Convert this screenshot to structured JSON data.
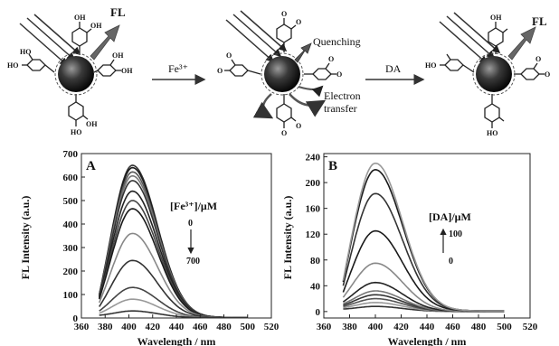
{
  "schematic": {
    "fl_label_left": "FL",
    "arrow1_label": "Fe³⁺",
    "quenching_label": "Quenching",
    "electron_label_line1": "Electron",
    "electron_label_line2": "transfer",
    "arrow2_label": "DA",
    "fl_label_right": "FL",
    "oh_label": "OH",
    "ho_label": "HO",
    "o_label": "O"
  },
  "chart_data": [
    {
      "type": "line",
      "panel_label": "A",
      "xlabel": "Wavelength / nm",
      "ylabel": "FL Intensity (a.u.)",
      "xlim": [
        360,
        520
      ],
      "ylim": [
        0,
        700
      ],
      "xticks": [
        360,
        380,
        400,
        420,
        440,
        460,
        480,
        500,
        520
      ],
      "yticks": [
        0,
        100,
        200,
        300,
        400,
        500,
        600,
        700
      ],
      "x_range": [
        375,
        500
      ],
      "peak_x": 403,
      "legend_title": "[Fe³⁺]/μM",
      "legend_start": "0",
      "legend_end": "700",
      "grid": false,
      "series": [
        {
          "peak": 650,
          "start": 100,
          "end": 2,
          "color": "#333333"
        },
        {
          "peak": 640,
          "start": 98,
          "end": 2,
          "color": "#1a1a1a"
        },
        {
          "peak": 622,
          "start": 96,
          "end": 2,
          "color": "#555555"
        },
        {
          "peak": 605,
          "start": 94,
          "end": 2,
          "color": "#777777"
        },
        {
          "peak": 585,
          "start": 92,
          "end": 2,
          "color": "#333333"
        },
        {
          "peak": 540,
          "start": 88,
          "end": 2,
          "color": "#222222"
        },
        {
          "peak": 500,
          "start": 84,
          "end": 2,
          "color": "#444444"
        },
        {
          "peak": 465,
          "start": 80,
          "end": 2,
          "color": "#1a1a1a"
        },
        {
          "peak": 360,
          "start": 65,
          "end": 2,
          "color": "#888888"
        },
        {
          "peak": 245,
          "start": 48,
          "end": 2,
          "color": "#333333"
        },
        {
          "peak": 130,
          "start": 30,
          "end": 1,
          "color": "#444444"
        },
        {
          "peak": 80,
          "start": 20,
          "end": 1,
          "color": "#999999"
        },
        {
          "peak": 30,
          "start": 12,
          "end": 1,
          "color": "#333333"
        }
      ]
    },
    {
      "type": "line",
      "panel_label": "B",
      "xlabel": "Wavelength / nm",
      "ylabel": "FL Intensity (a.u.)",
      "xlim": [
        360,
        520
      ],
      "ylim": [
        -10,
        245
      ],
      "xticks": [
        360,
        380,
        400,
        420,
        440,
        460,
        480,
        500,
        520
      ],
      "yticks": [
        0,
        40,
        80,
        120,
        160,
        200,
        240
      ],
      "x_range": [
        375,
        500
      ],
      "peak_x": 400,
      "legend_title": "[DA]/μM",
      "legend_start": "0",
      "legend_end": "100",
      "grid": false,
      "series": [
        {
          "peak": 8,
          "start": 4,
          "end": 0,
          "color": "#333333"
        },
        {
          "peak": 14,
          "start": 6,
          "end": 0,
          "color": "#999999"
        },
        {
          "peak": 20,
          "start": 8,
          "end": 0,
          "color": "#555555"
        },
        {
          "peak": 26,
          "start": 10,
          "end": 0,
          "color": "#333333"
        },
        {
          "peak": 32,
          "start": 12,
          "end": 0,
          "color": "#777777"
        },
        {
          "peak": 45,
          "start": 15,
          "end": 0,
          "color": "#222222"
        },
        {
          "peak": 75,
          "start": 22,
          "end": 0,
          "color": "#888888"
        },
        {
          "peak": 125,
          "start": 30,
          "end": 1,
          "color": "#1a1a1a"
        },
        {
          "peak": 183,
          "start": 40,
          "end": 1,
          "color": "#333333"
        },
        {
          "peak": 220,
          "start": 46,
          "end": 1,
          "color": "#1a1a1a"
        },
        {
          "peak": 230,
          "start": 48,
          "end": 1,
          "color": "#999999"
        }
      ]
    }
  ]
}
